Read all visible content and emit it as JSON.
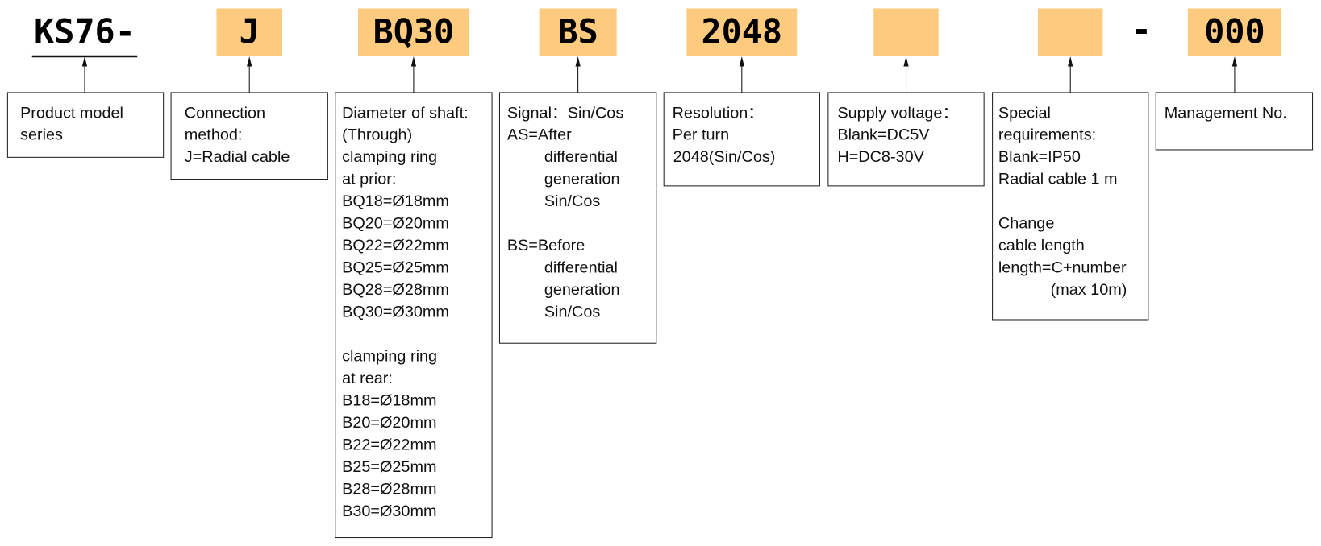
{
  "segments": [
    {
      "code": "KS76-",
      "paragraphs": [
        [
          "Product model",
          "series"
        ]
      ]
    },
    {
      "code": "J",
      "paragraphs": [
        [
          "Connection",
          "method:",
          "J=Radial cable"
        ]
      ]
    },
    {
      "code": "BQ30",
      "paragraphs": [
        [
          "Diameter of shaft:",
          "(Through)",
          "clamping ring",
          "at prior:",
          "BQ18=Ø18mm",
          "BQ20=Ø20mm",
          "BQ22=Ø22mm",
          "BQ25=Ø25mm",
          "BQ28=Ø28mm",
          "BQ30=Ø30mm"
        ],
        [
          "clamping ring",
          "at rear:",
          "B18=Ø18mm",
          "B20=Ø20mm",
          "B22=Ø22mm",
          "B25=Ø25mm",
          "B28=Ø28mm",
          "B30=Ø30mm"
        ]
      ]
    },
    {
      "code": "BS",
      "paragraphs": [
        [
          "Signal：Sin/Cos",
          "AS=After",
          "differential",
          "generation",
          "Sin/Cos"
        ],
        [
          "BS=Before",
          "differential",
          "generation",
          "Sin/Cos"
        ]
      ]
    },
    {
      "code": "2048",
      "paragraphs": [
        [
          "Resolution：",
          "Per turn",
          "2048(Sin/Cos)"
        ]
      ]
    },
    {
      "paragraphs": [
        [
          "Supply voltage：",
          "Blank=DC5V",
          "H=DC8-30V"
        ]
      ]
    },
    {
      "paragraphs": [
        [
          "Special",
          "requirements:",
          "Blank=IP50",
          "Radial cable 1 m"
        ],
        [
          "Change",
          "cable length",
          "length=C+number",
          "(max 10m)"
        ]
      ]
    },
    {
      "code": "000",
      "paragraphs": [
        [
          "Management No."
        ]
      ]
    }
  ],
  "separator": "-"
}
